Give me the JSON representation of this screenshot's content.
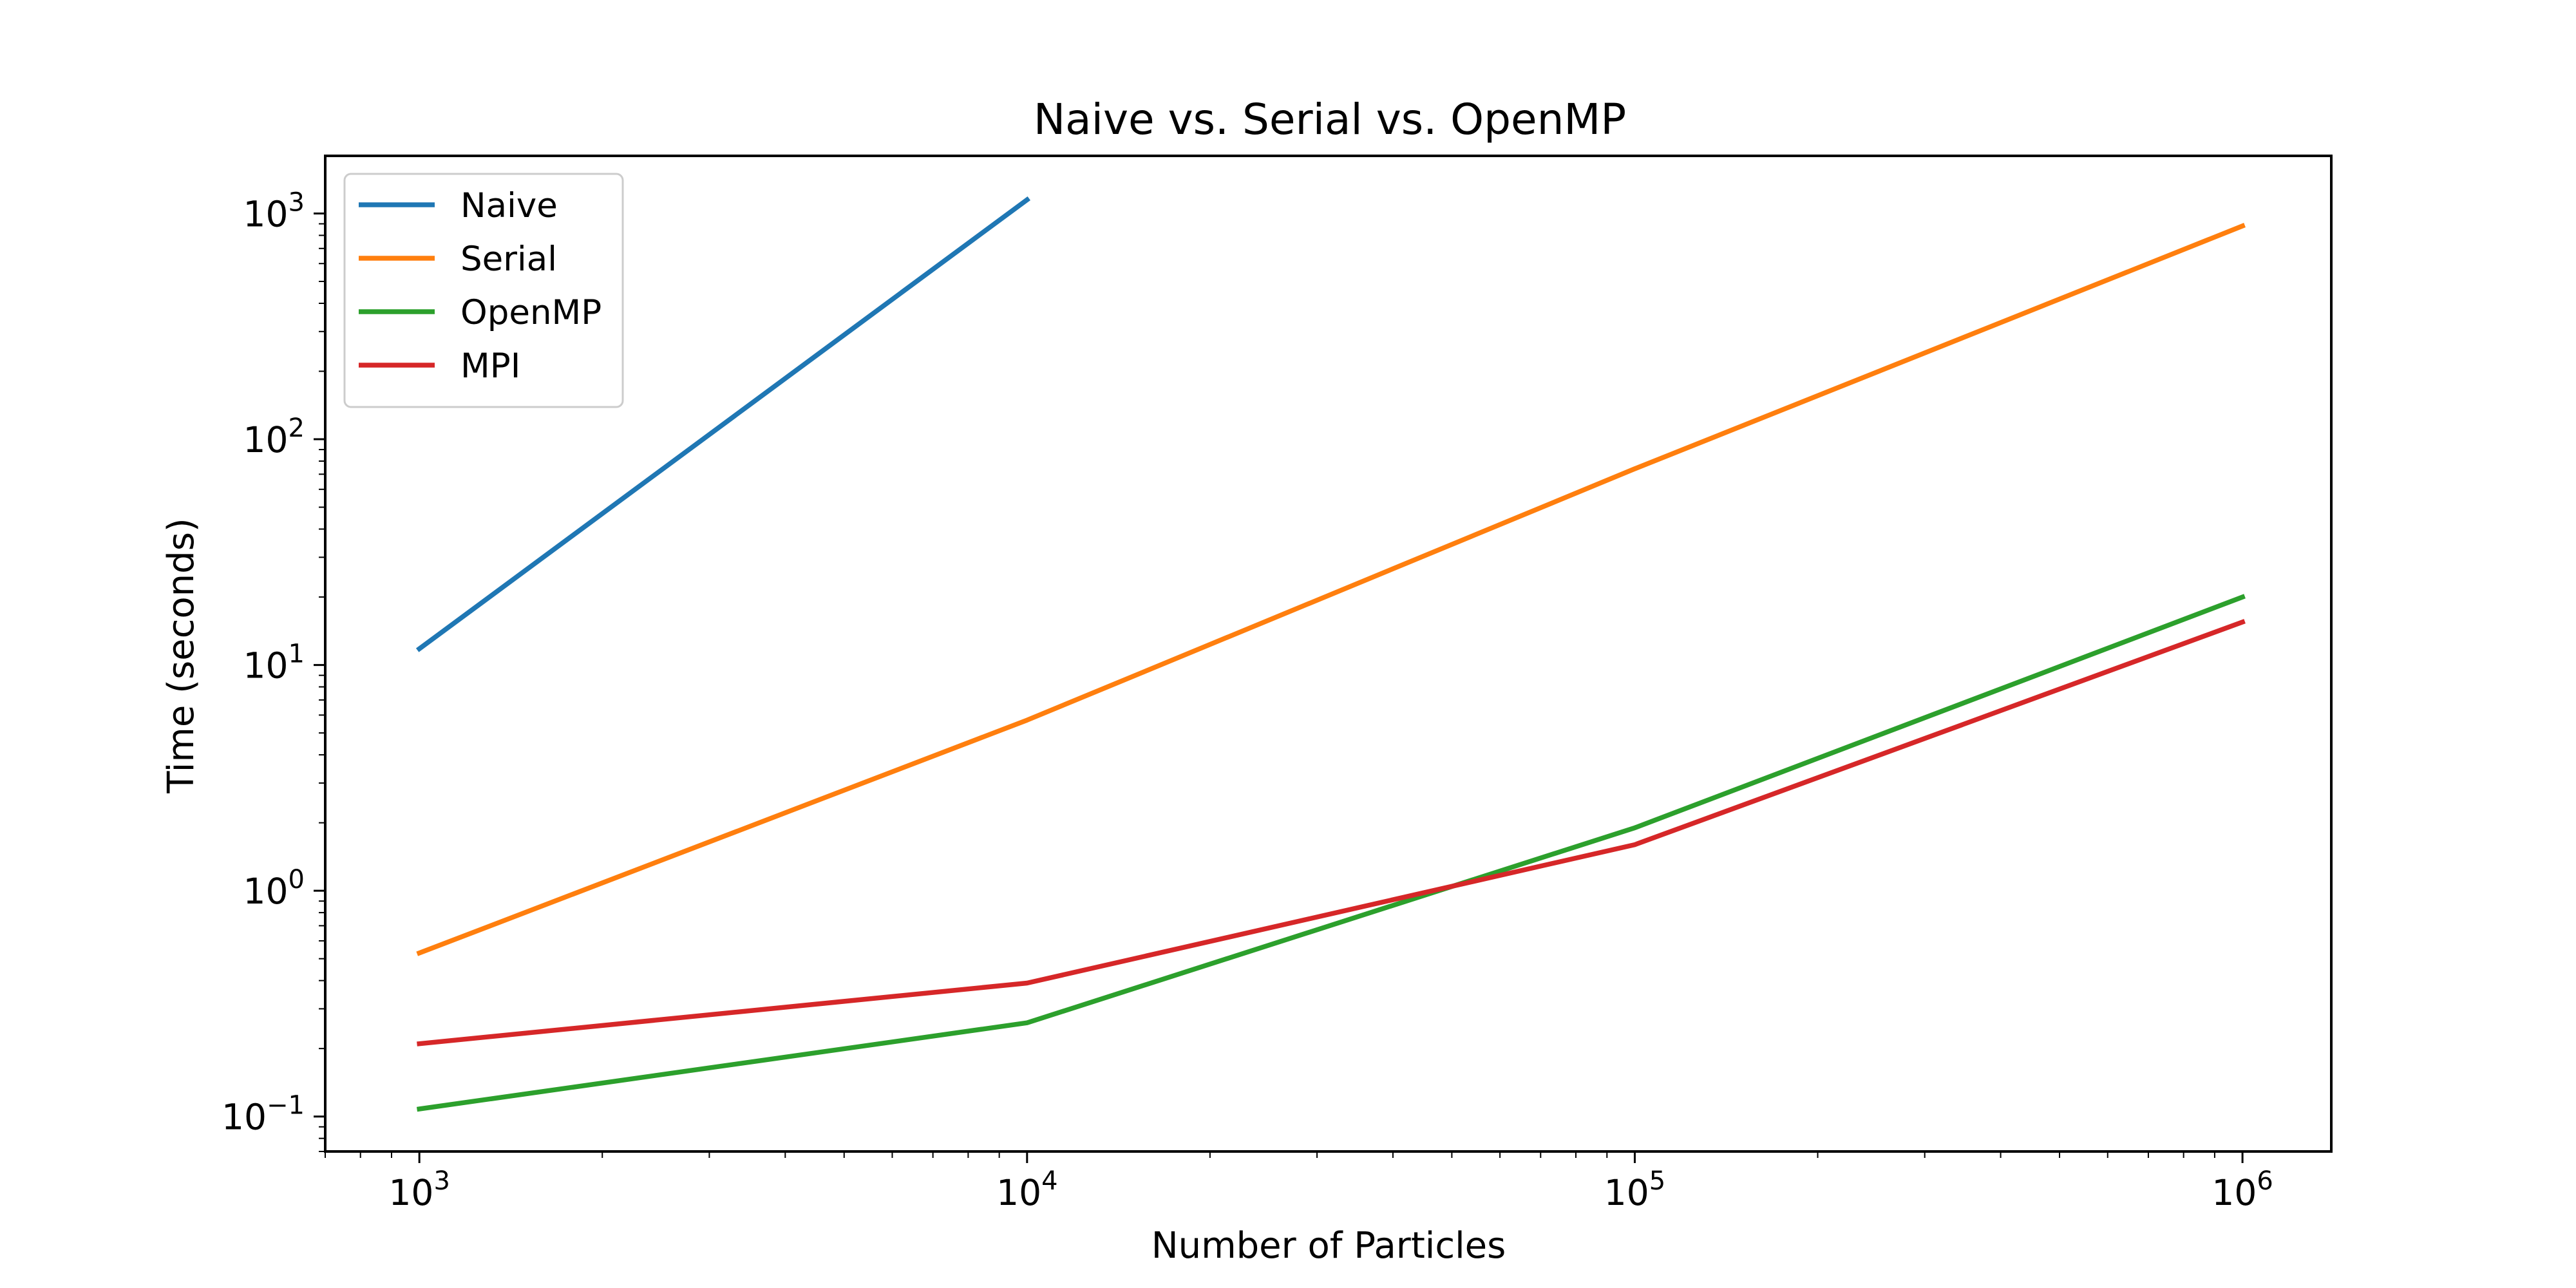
{
  "chart_data": {
    "type": "line",
    "title": "Naive vs. Serial vs. OpenMP",
    "xlabel": "Number of Particles",
    "ylabel": "Time (seconds)",
    "xscale": "log",
    "yscale": "log",
    "xlim": [
      700,
      1400000
    ],
    "ylim": [
      0.07,
      1800
    ],
    "grid": false,
    "legend_position": "top-left",
    "x_ticks": [
      {
        "value": 1000,
        "base": "10",
        "exp": "3"
      },
      {
        "value": 10000,
        "base": "10",
        "exp": "4"
      },
      {
        "value": 100000,
        "base": "10",
        "exp": "5"
      },
      {
        "value": 1000000,
        "base": "10",
        "exp": "6"
      }
    ],
    "y_ticks": [
      {
        "value": 0.1,
        "base": "10",
        "exp": "−1"
      },
      {
        "value": 1,
        "base": "10",
        "exp": "0"
      },
      {
        "value": 10,
        "base": "10",
        "exp": "1"
      },
      {
        "value": 100,
        "base": "10",
        "exp": "2"
      },
      {
        "value": 1000,
        "base": "10",
        "exp": "3"
      }
    ],
    "series": [
      {
        "name": "Naive",
        "color": "#1f77b4",
        "x": [
          1000,
          10000
        ],
        "y": [
          11.8,
          1150
        ]
      },
      {
        "name": "Serial",
        "color": "#ff7f0e",
        "x": [
          1000,
          10000,
          100000,
          1000000
        ],
        "y": [
          0.53,
          5.7,
          74,
          880
        ]
      },
      {
        "name": "OpenMP",
        "color": "#2ca02c",
        "x": [
          1000,
          10000,
          100000,
          1000000
        ],
        "y": [
          0.108,
          0.26,
          1.9,
          20
        ]
      },
      {
        "name": "MPI",
        "color": "#d62728",
        "x": [
          1000,
          10000,
          100000,
          1000000
        ],
        "y": [
          0.21,
          0.39,
          1.6,
          15.5
        ]
      }
    ]
  }
}
